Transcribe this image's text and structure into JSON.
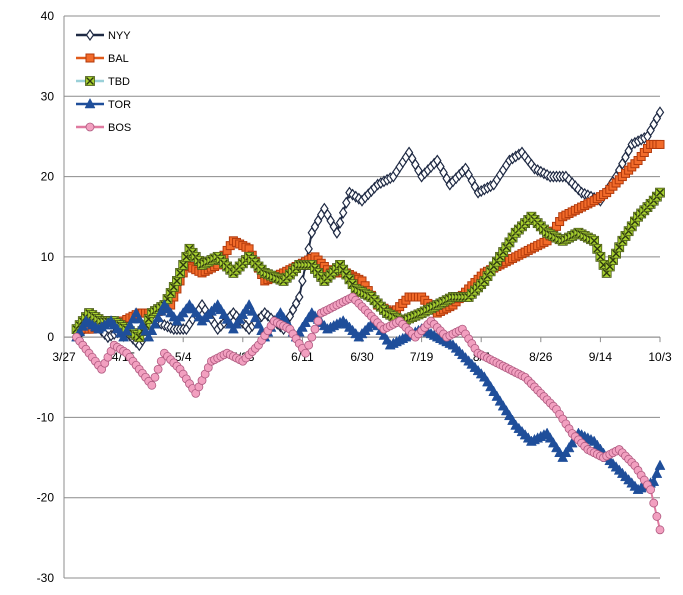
{
  "chart_data": {
    "type": "line",
    "title": "",
    "xlabel": "",
    "ylabel": "",
    "ylim": [
      -30,
      40
    ],
    "yticks": [
      40,
      30,
      20,
      10,
      0,
      -10,
      -20,
      -30
    ],
    "x_domain": [
      "3/27",
      "10/3"
    ],
    "xticks": [
      "3/27",
      "4/15",
      "5/4",
      "5/23",
      "6/11",
      "6/30",
      "7/19",
      "8/7",
      "8/26",
      "9/14",
      "10/3"
    ],
    "grid": "horizontal",
    "legend_position": "top-left",
    "series": [
      {
        "name": "NYY",
        "color": "#1f2a44",
        "marker": "diamond",
        "points": [
          [
            "3/31",
            0
          ],
          [
            "4/5",
            2
          ],
          [
            "4/10",
            0
          ],
          [
            "4/15",
            1
          ],
          [
            "4/20",
            -1
          ],
          [
            "4/25",
            2
          ],
          [
            "5/1",
            1
          ],
          [
            "5/5",
            1
          ],
          [
            "5/10",
            4
          ],
          [
            "5/15",
            1
          ],
          [
            "5/20",
            3
          ],
          [
            "5/25",
            1
          ],
          [
            "5/30",
            3
          ],
          [
            "6/5",
            1
          ],
          [
            "6/10",
            5
          ],
          [
            "6/14",
            13
          ],
          [
            "6/18",
            16
          ],
          [
            "6/22",
            13
          ],
          [
            "6/26",
            18
          ],
          [
            "6/30",
            17
          ],
          [
            "7/5",
            19
          ],
          [
            "7/10",
            20
          ],
          [
            "7/15",
            23
          ],
          [
            "7/19",
            20
          ],
          [
            "7/24",
            22
          ],
          [
            "7/28",
            19
          ],
          [
            "8/2",
            21
          ],
          [
            "8/6",
            18
          ],
          [
            "8/11",
            19
          ],
          [
            "8/16",
            22
          ],
          [
            "8/20",
            23
          ],
          [
            "8/24",
            21
          ],
          [
            "8/29",
            20
          ],
          [
            "9/3",
            20
          ],
          [
            "9/8",
            18
          ],
          [
            "9/14",
            17
          ],
          [
            "9/19",
            20
          ],
          [
            "9/24",
            24
          ],
          [
            "9/29",
            25
          ],
          [
            "10/3",
            28
          ]
        ]
      },
      {
        "name": "BAL",
        "color": "#e05a1a",
        "marker": "square",
        "points": [
          [
            "3/31",
            1
          ],
          [
            "4/5",
            1
          ],
          [
            "4/10",
            2
          ],
          [
            "4/15",
            2
          ],
          [
            "4/20",
            3
          ],
          [
            "4/25",
            3
          ],
          [
            "4/30",
            4
          ],
          [
            "5/5",
            9
          ],
          [
            "5/10",
            8
          ],
          [
            "5/15",
            9
          ],
          [
            "5/20",
            12
          ],
          [
            "5/25",
            11
          ],
          [
            "5/30",
            7
          ],
          [
            "6/5",
            8
          ],
          [
            "6/10",
            9
          ],
          [
            "6/15",
            10
          ],
          [
            "6/20",
            8
          ],
          [
            "6/25",
            8
          ],
          [
            "6/30",
            7
          ],
          [
            "7/5",
            4
          ],
          [
            "7/10",
            3
          ],
          [
            "7/15",
            5
          ],
          [
            "7/19",
            5
          ],
          [
            "7/24",
            3
          ],
          [
            "7/29",
            4
          ],
          [
            "8/3",
            6
          ],
          [
            "8/8",
            8
          ],
          [
            "8/13",
            9
          ],
          [
            "8/18",
            10
          ],
          [
            "8/23",
            11
          ],
          [
            "8/28",
            12
          ],
          [
            "9/2",
            15
          ],
          [
            "9/7",
            16
          ],
          [
            "9/12",
            17
          ],
          [
            "9/16",
            18
          ],
          [
            "9/21",
            20
          ],
          [
            "9/26",
            22
          ],
          [
            "9/30",
            24
          ],
          [
            "10/3",
            24
          ]
        ]
      },
      {
        "name": "TBD",
        "color": "#9ad0d8",
        "marker": "x-square",
        "points": [
          [
            "3/31",
            1
          ],
          [
            "4/4",
            3
          ],
          [
            "4/8",
            2
          ],
          [
            "4/12",
            2
          ],
          [
            "4/16",
            1
          ],
          [
            "4/20",
            0
          ],
          [
            "4/24",
            3
          ],
          [
            "4/28",
            4
          ],
          [
            "5/2",
            7
          ],
          [
            "5/6",
            11
          ],
          [
            "5/10",
            9
          ],
          [
            "5/15",
            10
          ],
          [
            "5/20",
            8
          ],
          [
            "5/25",
            10
          ],
          [
            "5/30",
            8
          ],
          [
            "6/5",
            7
          ],
          [
            "6/10",
            9
          ],
          [
            "6/14",
            9
          ],
          [
            "6/18",
            7
          ],
          [
            "6/23",
            9
          ],
          [
            "6/28",
            6
          ],
          [
            "7/3",
            5
          ],
          [
            "7/8",
            3
          ],
          [
            "7/13",
            2
          ],
          [
            "7/19",
            3
          ],
          [
            "7/24",
            4
          ],
          [
            "7/29",
            5
          ],
          [
            "8/3",
            5
          ],
          [
            "8/8",
            7
          ],
          [
            "8/13",
            10
          ],
          [
            "8/18",
            13
          ],
          [
            "8/23",
            15
          ],
          [
            "8/28",
            13
          ],
          [
            "9/2",
            12
          ],
          [
            "9/7",
            13
          ],
          [
            "9/12",
            12
          ],
          [
            "9/16",
            8
          ],
          [
            "9/21",
            12
          ],
          [
            "9/26",
            15
          ],
          [
            "10/1",
            17
          ],
          [
            "10/3",
            18
          ]
        ]
      },
      {
        "name": "TOR",
        "color": "#1f4e9a",
        "marker": "triangle",
        "points": [
          [
            "3/31",
            0
          ],
          [
            "4/3",
            2
          ],
          [
            "4/7",
            1
          ],
          [
            "4/11",
            2
          ],
          [
            "4/15",
            0
          ],
          [
            "4/19",
            3
          ],
          [
            "4/23",
            0
          ],
          [
            "4/28",
            4
          ],
          [
            "5/2",
            2
          ],
          [
            "5/6",
            4
          ],
          [
            "5/10",
            2
          ],
          [
            "5/15",
            4
          ],
          [
            "5/20",
            1
          ],
          [
            "5/25",
            4
          ],
          [
            "5/30",
            0
          ],
          [
            "6/4",
            3
          ],
          [
            "6/9",
            0
          ],
          [
            "6/14",
            3
          ],
          [
            "6/19",
            1
          ],
          [
            "6/24",
            2
          ],
          [
            "6/29",
            0
          ],
          [
            "7/4",
            2
          ],
          [
            "7/9",
            -1
          ],
          [
            "7/14",
            0
          ],
          [
            "7/19",
            1
          ],
          [
            "7/24",
            0
          ],
          [
            "7/29",
            -1
          ],
          [
            "8/3",
            -3
          ],
          [
            "8/8",
            -5
          ],
          [
            "8/13",
            -8
          ],
          [
            "8/18",
            -11
          ],
          [
            "8/23",
            -13
          ],
          [
            "8/28",
            -12
          ],
          [
            "9/2",
            -15
          ],
          [
            "9/7",
            -12
          ],
          [
            "9/12",
            -13
          ],
          [
            "9/16",
            -15
          ],
          [
            "9/21",
            -17
          ],
          [
            "9/26",
            -19
          ],
          [
            "10/1",
            -18
          ],
          [
            "10/3",
            -16
          ]
        ]
      },
      {
        "name": "BOS",
        "color": "#e07aa0",
        "marker": "circle",
        "points": [
          [
            "3/31",
            0
          ],
          [
            "4/4",
            -2
          ],
          [
            "4/8",
            -4
          ],
          [
            "4/12",
            -1
          ],
          [
            "4/16",
            -2
          ],
          [
            "4/20",
            -4
          ],
          [
            "4/24",
            -6
          ],
          [
            "4/28",
            -2
          ],
          [
            "5/3",
            -4
          ],
          [
            "5/8",
            -7
          ],
          [
            "5/13",
            -3
          ],
          [
            "5/18",
            -2
          ],
          [
            "5/23",
            -3
          ],
          [
            "5/28",
            -1
          ],
          [
            "6/2",
            2
          ],
          [
            "6/7",
            1
          ],
          [
            "6/12",
            -2
          ],
          [
            "6/17",
            3
          ],
          [
            "6/22",
            4
          ],
          [
            "6/27",
            5
          ],
          [
            "7/2",
            3
          ],
          [
            "7/7",
            1
          ],
          [
            "7/12",
            2
          ],
          [
            "7/17",
            0
          ],
          [
            "7/22",
            2
          ],
          [
            "7/27",
            0
          ],
          [
            "8/1",
            1
          ],
          [
            "8/6",
            -2
          ],
          [
            "8/11",
            -3
          ],
          [
            "8/16",
            -4
          ],
          [
            "8/21",
            -5
          ],
          [
            "8/26",
            -7
          ],
          [
            "8/31",
            -9
          ],
          [
            "9/5",
            -12
          ],
          [
            "9/10",
            -14
          ],
          [
            "9/15",
            -15
          ],
          [
            "9/20",
            -14
          ],
          [
            "9/25",
            -16
          ],
          [
            "9/30",
            -19
          ],
          [
            "10/3",
            -24
          ]
        ]
      }
    ]
  }
}
